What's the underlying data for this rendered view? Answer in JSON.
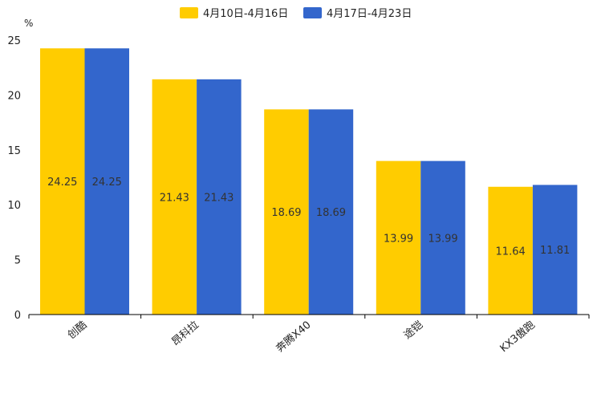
{
  "chart_data": {
    "type": "bar",
    "unit": "%",
    "categories": [
      "创酷",
      "昂科拉",
      "奔腾X40",
      "途铠",
      "KX3傲跑"
    ],
    "series": [
      {
        "name": "4月10日-4月16日",
        "color": "#FFCC00",
        "values": [
          24.25,
          21.43,
          18.69,
          13.99,
          11.64
        ]
      },
      {
        "name": "4月17日-4月23日",
        "color": "#3366CC",
        "values": [
          24.25,
          21.43,
          18.69,
          13.99,
          11.81
        ]
      }
    ],
    "data_labels": [
      [
        "24.25",
        "21.43",
        "18.69",
        "13.99",
        "11.64"
      ],
      [
        "24.25",
        "21.43",
        "18.69",
        "13.99",
        "11.81"
      ]
    ],
    "ylim": [
      0,
      25
    ],
    "yticks": [
      0,
      5,
      10,
      15,
      20,
      25
    ],
    "legend_position": "top-center",
    "grid": false
  }
}
